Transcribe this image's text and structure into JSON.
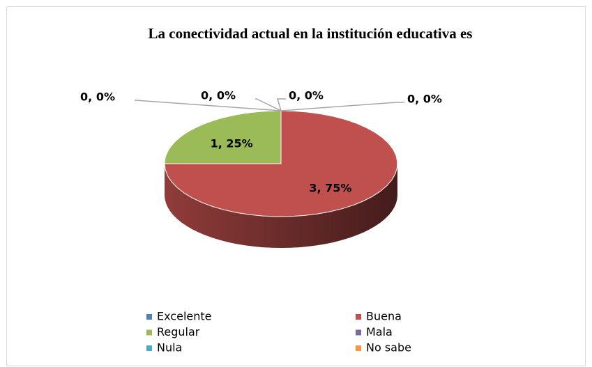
{
  "chart_data": {
    "type": "pie",
    "title": "La conectividad actual en la institución educativa es",
    "categories": [
      "Excelente",
      "Buena",
      "Regular",
      "Mala",
      "Nula",
      "No sabe"
    ],
    "values": [
      0,
      3,
      1,
      0,
      0,
      0
    ],
    "value_labels": [
      "0, 0%",
      "3, 75%",
      "1, 25%",
      "0, 0%",
      "0, 0%",
      "0, 0%"
    ],
    "colors": [
      "#4f81bd",
      "#c0504d",
      "#9bbb59",
      "#8064a2",
      "#4bacc6",
      "#f79646"
    ],
    "legend": "bottom"
  }
}
